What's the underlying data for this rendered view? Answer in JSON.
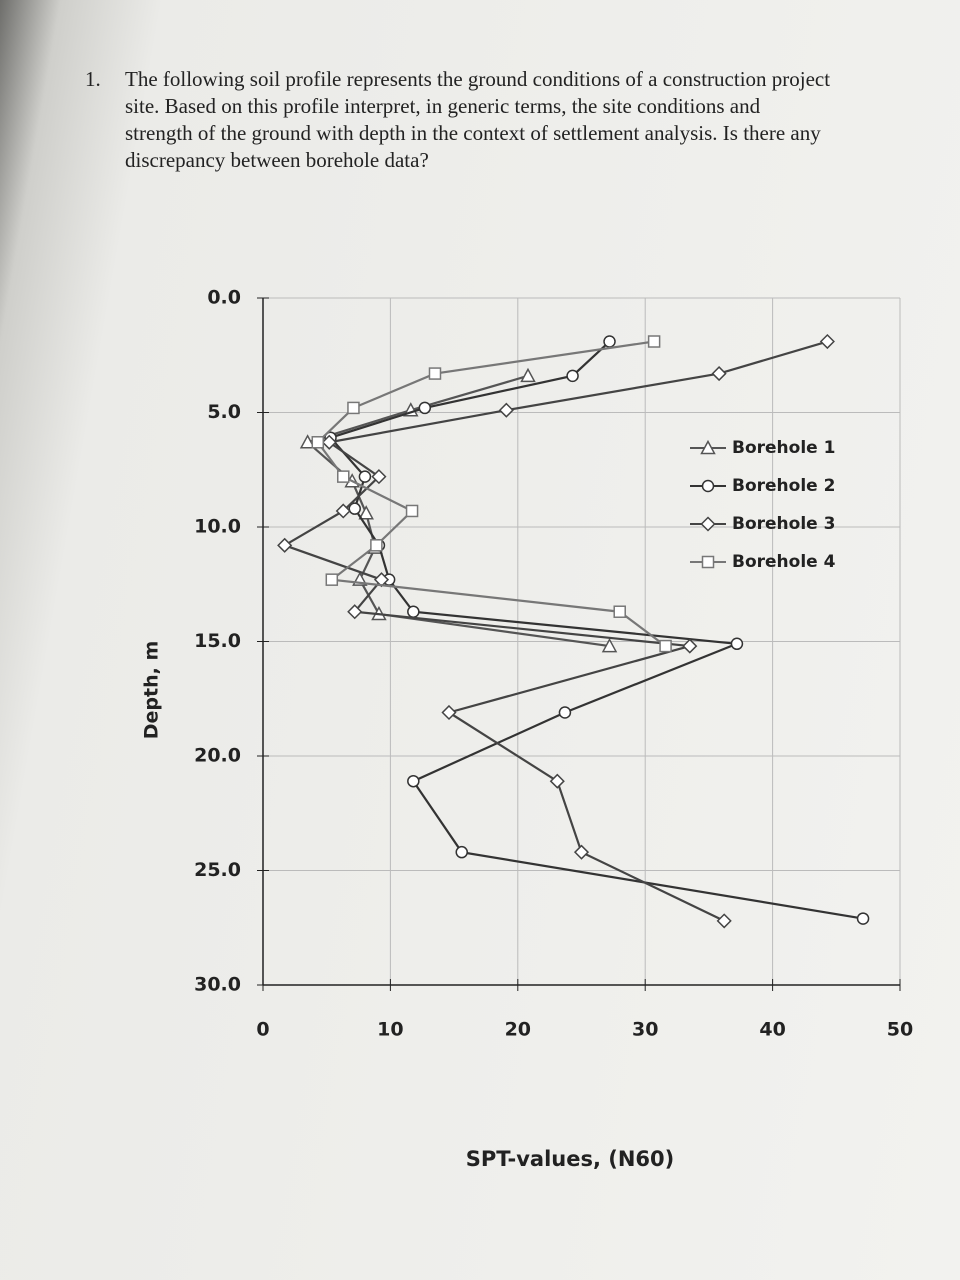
{
  "question": {
    "number": "1.",
    "lines": [
      "The following soil profile represents the ground conditions of a construction project",
      "site. Based on this profile interpret, in generic terms, the site conditions and",
      "strength of the ground with depth in the context of settlement analysis. Is there any",
      "discrepancy between borehole data?"
    ]
  },
  "chart_data": {
    "type": "line",
    "xlabel": "SPT-values, (N60)",
    "ylabel": "Depth, m",
    "xlim": [
      0,
      50
    ],
    "xticks": [
      0,
      10,
      20,
      30,
      40,
      50
    ],
    "ylim": [
      0,
      30
    ],
    "y_reversed": true,
    "yticks": [
      {
        "value": 0,
        "label": "0.0"
      },
      {
        "value": 5,
        "label": "5.0"
      },
      {
        "value": 10,
        "label": "10.0"
      },
      {
        "value": 15,
        "label": "15.0"
      },
      {
        "value": 20,
        "label": "20.0"
      },
      {
        "value": 25,
        "label": "25.0"
      },
      {
        "value": 30,
        "label": "30.0"
      }
    ],
    "grid": true,
    "legend": "right",
    "series": [
      {
        "name": "Borehole 1",
        "color": "#555555",
        "marker": "triangle",
        "x": [
          20.8,
          11.6,
          3.5,
          7.0,
          8.1,
          8.8,
          7.6,
          9.1,
          27.2
        ],
        "values": [
          3.4,
          4.9,
          6.3,
          8.0,
          9.4,
          10.9,
          12.3,
          13.8,
          15.2
        ]
      },
      {
        "name": "Borehole 2",
        "color": "#333333",
        "marker": "circle",
        "x": [
          27.2,
          24.3,
          12.7,
          5.3,
          8.0,
          7.2,
          9.1,
          9.9,
          11.8,
          37.2,
          23.7,
          11.8,
          15.6,
          47.1
        ],
        "values": [
          1.9,
          3.4,
          4.8,
          6.1,
          7.8,
          9.2,
          10.8,
          12.3,
          13.7,
          15.1,
          18.1,
          21.1,
          24.2,
          27.1
        ]
      },
      {
        "name": "Borehole 3",
        "color": "#444444",
        "marker": "diamond",
        "x": [
          44.3,
          35.8,
          19.1,
          5.2,
          9.1,
          6.3,
          1.7,
          9.3,
          7.2,
          33.5,
          14.6,
          23.1,
          25.0,
          36.2
        ],
        "values": [
          1.9,
          3.3,
          4.9,
          6.3,
          7.8,
          9.3,
          10.8,
          12.3,
          13.7,
          15.2,
          18.1,
          21.1,
          24.2,
          27.2
        ]
      },
      {
        "name": "Borehole 4",
        "color": "#777777",
        "marker": "square",
        "x": [
          30.7,
          13.5,
          7.1,
          4.3,
          6.3,
          11.7,
          8.9,
          5.4,
          28.0,
          31.6
        ],
        "values": [
          1.9,
          3.3,
          4.8,
          6.3,
          7.8,
          9.3,
          10.8,
          12.3,
          13.7,
          15.2
        ]
      }
    ]
  }
}
